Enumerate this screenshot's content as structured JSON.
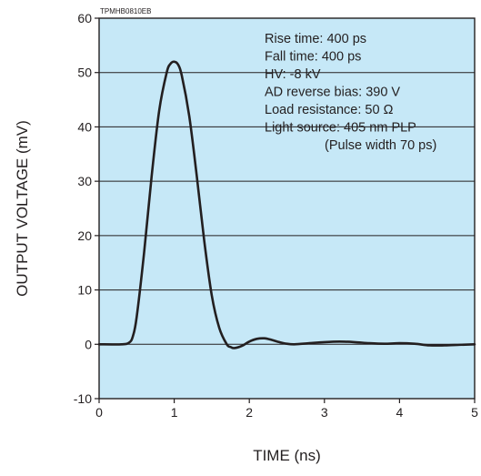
{
  "chart_data": {
    "type": "line",
    "code": "TPMHB0810EB",
    "xlabel": "TIME (ns)",
    "ylabel": "OUTPUT VOLTAGE (mV)",
    "xlim": [
      0,
      5
    ],
    "ylim": [
      -10,
      60
    ],
    "xticks": [
      "0",
      "1",
      "2",
      "3",
      "4",
      "5"
    ],
    "yticks": [
      "-10",
      "0",
      "10",
      "20",
      "30",
      "40",
      "50",
      "60"
    ],
    "grid": "horizontal",
    "colors": {
      "background": "#c6e8f7",
      "line": "#231f20",
      "grid": "#231f20"
    },
    "annotations": [
      "Rise time: 400 ps",
      "Fall time: 400 ps",
      "HV: -8 kV",
      "AD reverse bias: 390 V",
      "Load resistance: 50 Ω",
      "Light source: 405 nm PLP",
      "(Pulse width 70 ps)"
    ],
    "series": [
      {
        "x": [
          0,
          0.3,
          0.4,
          0.45,
          0.5,
          0.6,
          0.7,
          0.8,
          0.9,
          0.95,
          1.0,
          1.05,
          1.1,
          1.2,
          1.3,
          1.4,
          1.5,
          1.6,
          1.7,
          1.75,
          1.8,
          1.9,
          2.0,
          2.1,
          2.2,
          2.3,
          2.4,
          2.5,
          2.6,
          2.8,
          3.0,
          3.2,
          3.4,
          3.6,
          3.8,
          4.0,
          4.2,
          4.4,
          4.6,
          4.8,
          5.0
        ],
        "y": [
          0,
          0,
          0.3,
          1.5,
          5,
          17,
          31,
          43,
          50,
          51.6,
          52,
          51.5,
          49.5,
          42,
          31,
          19,
          9,
          3,
          0,
          -0.5,
          -0.7,
          -0.3,
          0.5,
          1,
          1.1,
          0.8,
          0.4,
          0.1,
          0,
          0.2,
          0.4,
          0.5,
          0.4,
          0.2,
          0.1,
          0.2,
          0.1,
          -0.2,
          -0.2,
          -0.1,
          0
        ]
      }
    ]
  }
}
